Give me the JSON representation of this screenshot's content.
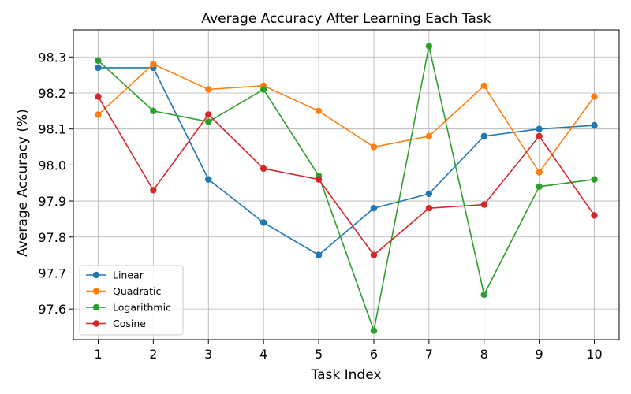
{
  "chart_data": {
    "type": "line",
    "title": "Average Accuracy After Learning Each Task",
    "xlabel": "Task Index",
    "ylabel": "Average Accuracy (%)",
    "x": [
      1,
      2,
      3,
      4,
      5,
      6,
      7,
      8,
      9,
      10
    ],
    "xlim": [
      0.55,
      10.45
    ],
    "ylim": [
      97.515,
      98.375
    ],
    "yticks": [
      97.6,
      97.7,
      97.8,
      97.9,
      98.0,
      98.1,
      98.2,
      98.3
    ],
    "ytick_labels": [
      "97.6",
      "97.7",
      "97.8",
      "97.9",
      "98.0",
      "98.1",
      "98.2",
      "98.3"
    ],
    "grid": true,
    "legend_position": "lower-left",
    "series": [
      {
        "name": "Linear",
        "color": "#1f77b4",
        "values": [
          98.27,
          98.27,
          97.96,
          97.84,
          97.75,
          97.88,
          97.92,
          98.08,
          98.1,
          98.11
        ]
      },
      {
        "name": "Quadratic",
        "color": "#ff7f0e",
        "values": [
          98.14,
          98.28,
          98.21,
          98.22,
          98.15,
          98.05,
          98.08,
          98.22,
          97.98,
          98.19
        ]
      },
      {
        "name": "Logarithmic",
        "color": "#2ca02c",
        "values": [
          98.29,
          98.15,
          98.12,
          98.21,
          97.97,
          97.54,
          98.33,
          97.64,
          97.94,
          97.96
        ]
      },
      {
        "name": "Cosine",
        "color": "#d62728",
        "values": [
          98.19,
          97.93,
          98.14,
          97.99,
          97.96,
          97.75,
          97.88,
          97.89,
          98.08,
          97.86
        ]
      }
    ]
  }
}
